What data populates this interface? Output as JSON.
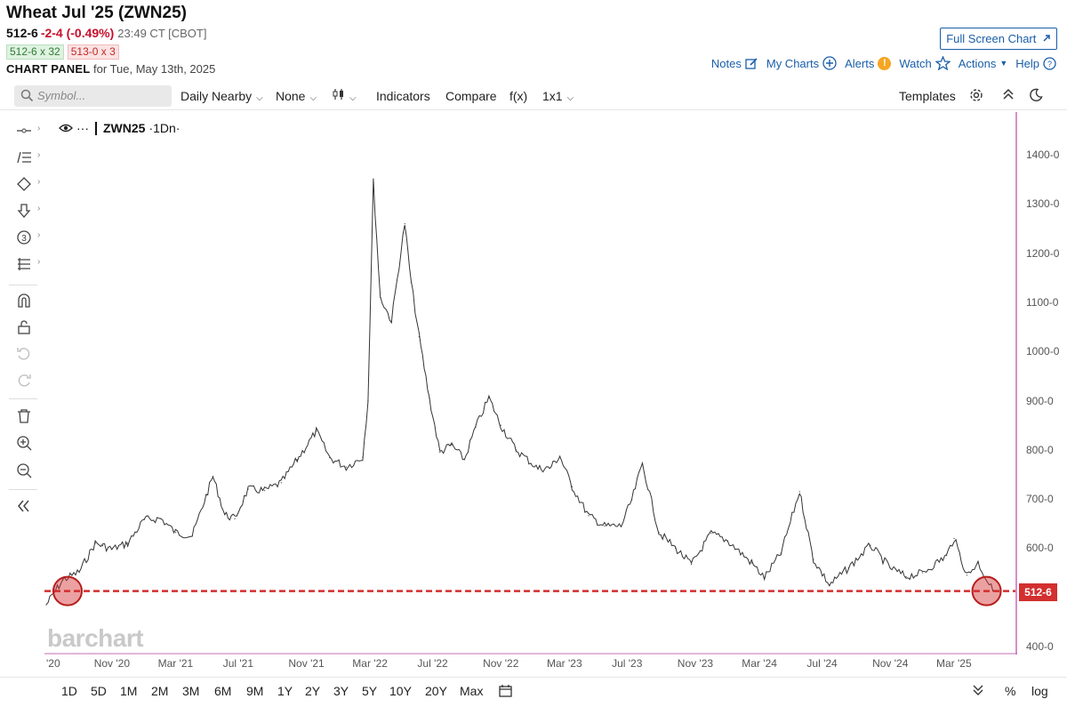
{
  "header": {
    "title": "Wheat Jul '25 (ZWN25)",
    "last": "512-6",
    "change": "-2-4 (-0.49%)",
    "meta": "23:49 CT [CBOT]",
    "bid": "512-6 x 32",
    "ask": "513-0 x 3",
    "panel_label": "CHART PANEL",
    "panel_date": "for Tue, May 13th, 2025",
    "full_screen": "Full Screen Chart"
  },
  "links": {
    "notes": "Notes",
    "my_charts": "My Charts",
    "alerts": "Alerts",
    "alerts_badge": "!",
    "watch": "Watch",
    "actions": "Actions",
    "help": "Help"
  },
  "toolbar": {
    "symbol_placeholder": "Symbol...",
    "period": "Daily Nearby",
    "none": "None",
    "indicators": "Indicators",
    "compare": "Compare",
    "fx": "f(x)",
    "layout": "1x1",
    "templates": "Templates"
  },
  "chart_data": {
    "type": "line",
    "symbol_label": "ZWN25",
    "interval_label": "·1Dn·",
    "x_ticks": [
      "'20",
      "Nov '20",
      "Mar '21",
      "Jul '21",
      "Nov '21",
      "Mar '22",
      "Jul '22",
      "Nov '22",
      "Mar '23",
      "Jul '23",
      "Nov '23",
      "Mar '24",
      "Jul '24",
      "Nov '24",
      "Mar '25"
    ],
    "y_ticks": [
      "1400-0",
      "1300-0",
      "1200-0",
      "1100-0",
      "1000-0",
      "900-0",
      "800-0",
      "700-0",
      "600-0",
      "500-0",
      "400-0"
    ],
    "ylim": [
      400,
      1400
    ],
    "series": [
      {
        "color": "#333333",
        "x": [
          "2020-07-01",
          "2020-08-01",
          "2020-09-01",
          "2020-10-01",
          "2020-10-15",
          "2020-11-01",
          "2020-12-01",
          "2021-01-01",
          "2021-02-01",
          "2021-03-01",
          "2021-04-01",
          "2021-05-10",
          "2021-06-01",
          "2021-06-20",
          "2021-07-15",
          "2021-08-15",
          "2021-09-15",
          "2021-10-15",
          "2021-11-20",
          "2021-12-15",
          "2022-01-15",
          "2022-02-15",
          "2022-02-25",
          "2022-03-07",
          "2022-03-20",
          "2022-04-10",
          "2022-05-05",
          "2022-05-17",
          "2022-06-01",
          "2022-06-20",
          "2022-07-10",
          "2022-08-01",
          "2022-08-25",
          "2022-09-15",
          "2022-10-10",
          "2022-11-01",
          "2022-11-30",
          "2023-01-10",
          "2023-02-01",
          "2023-02-20",
          "2023-03-15",
          "2023-04-15",
          "2023-05-15",
          "2023-06-15",
          "2023-07-05",
          "2023-07-25",
          "2023-08-25",
          "2023-09-25",
          "2023-10-25",
          "2023-12-01",
          "2024-01-01",
          "2024-02-15",
          "2024-03-10",
          "2024-04-10",
          "2024-05-15",
          "2024-06-10",
          "2024-07-10",
          "2024-08-15",
          "2024-09-25",
          "2024-11-01",
          "2024-12-01",
          "2025-01-01",
          "2025-02-15",
          "2025-03-01",
          "2025-03-25",
          "2025-04-15",
          "2025-05-13"
        ],
        "y": [
          485,
          535,
          552,
          610,
          605,
          598,
          610,
          658,
          660,
          632,
          625,
          746,
          668,
          660,
          720,
          717,
          733,
          780,
          838,
          784,
          765,
          785,
          900,
          1345,
          1110,
          1062,
          1260,
          1140,
          1030,
          905,
          795,
          810,
          780,
          846,
          906,
          850,
          800,
          762,
          763,
          787,
          725,
          666,
          645,
          645,
          698,
          772,
          632,
          600,
          567,
          630,
          615,
          570,
          540,
          590,
          715,
          577,
          525,
          560,
          606,
          560,
          542,
          550,
          585,
          620,
          545,
          570,
          512.75
        ]
      }
    ],
    "last_price_label": "512-6",
    "last_price_value": 512.75
  },
  "ranges": [
    "1D",
    "5D",
    "1M",
    "2M",
    "3M",
    "6M",
    "9M",
    "1Y",
    "2Y",
    "3Y",
    "5Y",
    "10Y",
    "20Y",
    "Max"
  ],
  "bottom_right": {
    "percent": "%",
    "log": "log"
  },
  "watermark": "barchart",
  "colors": {
    "accent": "#1a5ea8",
    "down": "#c8102e",
    "price_line": "#d32f2f",
    "axis_border": "#c86bb5"
  }
}
